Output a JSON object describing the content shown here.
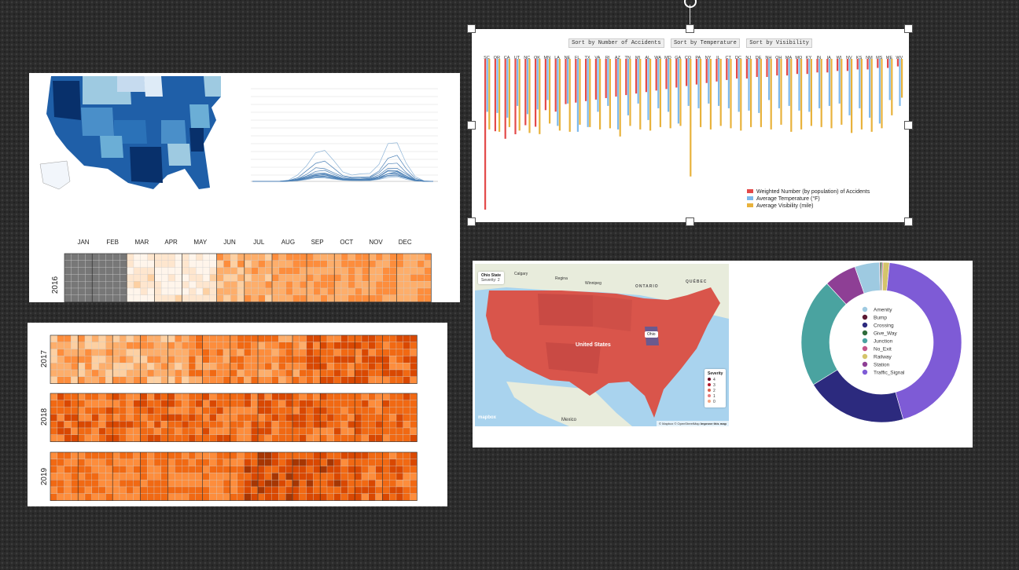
{
  "calendar": {
    "months": [
      "JAN",
      "FEB",
      "MAR",
      "APR",
      "MAY",
      "JUN",
      "JUL",
      "AUG",
      "SEP",
      "OCT",
      "NOV",
      "DEC"
    ],
    "years": [
      "2016",
      "2017",
      "2018",
      "2019"
    ]
  },
  "bar_chart": {
    "sort_buttons": [
      "Sort by Number of Accidents",
      "Sort by Temperature",
      "Sort by Visibility"
    ],
    "states": [
      "SC",
      "OR",
      "CA",
      "UT",
      "NC",
      "OK",
      "MN",
      "LA",
      "NE",
      "FL",
      "TX",
      "VA",
      "RI",
      "AZ",
      "TN",
      "MI",
      "AL",
      "WA",
      "MD",
      "GA",
      "CO",
      "PA",
      "NY",
      "IL",
      "CT",
      "DC",
      "NJ",
      "DE",
      "NH",
      "OH",
      "MA",
      "MO",
      "KY",
      "IN",
      "IA",
      "WI",
      "NV",
      "KS",
      "NM",
      "MS",
      "ME",
      "WV"
    ],
    "legend": [
      {
        "label": "Weighted Number (by population) of Accidents",
        "color": "#e34a4a"
      },
      {
        "label": "Average Temperature (°F)",
        "color": "#7db9ec"
      },
      {
        "label": "Average Visibility (mile)",
        "color": "#e8b23c"
      }
    ]
  },
  "severity_map": {
    "tooltip_title": "Ohio State",
    "tooltip_value": "Severity: 2",
    "state_popup": "Ohio",
    "country_label": "United States",
    "legend_title": "Severity",
    "legend_items": [
      "4",
      "3",
      "2",
      "1",
      "0"
    ],
    "attribution": "© Mapbox © OpenStreetMap",
    "improve_link": "Improve this map",
    "logo": "mapbox",
    "place_labels": [
      "ONTARIO",
      "QUÉBEC",
      "Calgary",
      "Regina",
      "Winnipeg",
      "Mexico"
    ]
  },
  "donut": {
    "legend": [
      {
        "label": "Amenity",
        "color": "#9ecae1"
      },
      {
        "label": "Bump",
        "color": "#5c1a33"
      },
      {
        "label": "Crossing",
        "color": "#2c2a7e"
      },
      {
        "label": "Give_Way",
        "color": "#2e6b3a"
      },
      {
        "label": "Junction",
        "color": "#4aa3a0"
      },
      {
        "label": "No_Exit",
        "color": "#c2558a"
      },
      {
        "label": "Railway",
        "color": "#d4c46a"
      },
      {
        "label": "Station",
        "color": "#8e3f95"
      },
      {
        "label": "Traffic_Signal",
        "color": "#7e5bd6"
      }
    ]
  },
  "chart_data": [
    {
      "type": "bar",
      "categories": [
        "SC",
        "OR",
        "CA",
        "UT",
        "NC",
        "OK",
        "MN",
        "LA",
        "NE",
        "FL",
        "TX",
        "VA",
        "RI",
        "AZ",
        "TN",
        "MI",
        "AL",
        "WA",
        "MD",
        "GA",
        "CO",
        "PA",
        "NY",
        "IL",
        "CT",
        "DC",
        "NJ",
        "DE",
        "NH",
        "OH",
        "MA",
        "MO",
        "KY",
        "IN",
        "IA",
        "WI",
        "NV",
        "KS",
        "NM",
        "MS",
        "ME",
        "WV"
      ],
      "series": [
        {
          "name": "Weighted Number (by population) of Accidents",
          "values": [
            100,
            48,
            53,
            50,
            44,
            45,
            34,
            35,
            30,
            29,
            28,
            27,
            26,
            25,
            24,
            23,
            22,
            21,
            20,
            19,
            18,
            17,
            16,
            15,
            14,
            13,
            13,
            12,
            12,
            11,
            11,
            10,
            10,
            9,
            9,
            8,
            8,
            7,
            7,
            6,
            6,
            5
          ]
        },
        {
          "name": "Average Temperature (°F)",
          "values": [
            45,
            46,
            50,
            40,
            47,
            43,
            35,
            57,
            38,
            62,
            58,
            45,
            40,
            60,
            48,
            38,
            52,
            42,
            45,
            55,
            40,
            42,
            38,
            40,
            42,
            45,
            44,
            46,
            35,
            42,
            40,
            44,
            45,
            42,
            40,
            38,
            48,
            42,
            50,
            55,
            35,
            40
          ]
        },
        {
          "name": "Average Visibility (mile)",
          "values": [
            60,
            62,
            58,
            61,
            63,
            64,
            55,
            61,
            62,
            56,
            58,
            60,
            59,
            66,
            57,
            60,
            61,
            58,
            59,
            57,
            100,
            58,
            60,
            57,
            59,
            61,
            58,
            58,
            60,
            56,
            62,
            60,
            57,
            58,
            59,
            56,
            63,
            60,
            62,
            59,
            48,
            33
          ]
        }
      ]
    },
    {
      "type": "pie",
      "categories": [
        "Amenity",
        "Bump",
        "Crossing",
        "Give_Way",
        "Junction",
        "No_Exit",
        "Railway",
        "Station",
        "Traffic_Signal"
      ],
      "values": [
        5.0,
        0.2,
        20.5,
        0.3,
        22.0,
        0.2,
        1.3,
        6.5,
        44.0
      ]
    }
  ]
}
